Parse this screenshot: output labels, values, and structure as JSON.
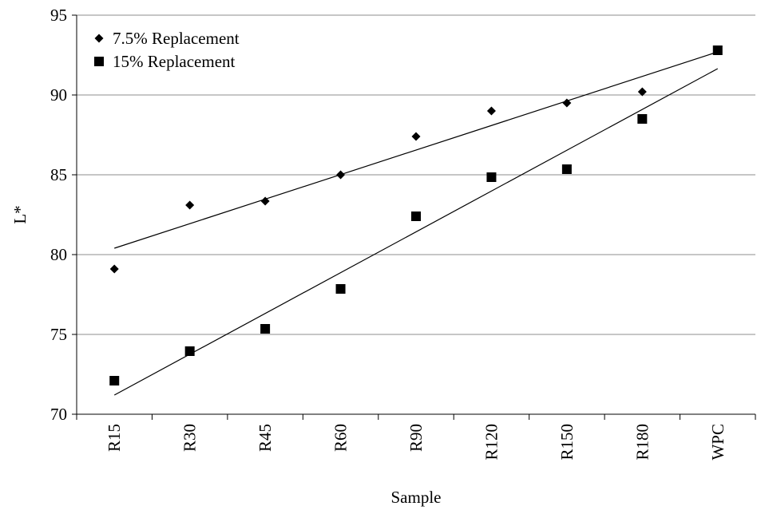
{
  "chart_data": {
    "type": "scatter",
    "categories": [
      "R15",
      "R30",
      "R45",
      "R60",
      "R90",
      "R120",
      "R150",
      "R180",
      "WPC"
    ],
    "series": [
      {
        "name": "7.5% Replacement",
        "marker": "diamond",
        "values": [
          79.1,
          83.1,
          83.35,
          85.0,
          87.4,
          89.0,
          89.5,
          90.2,
          92.8
        ]
      },
      {
        "name": "15% Replacement",
        "marker": "square",
        "values": [
          72.1,
          73.95,
          75.35,
          77.85,
          82.4,
          84.85,
          85.35,
          88.5,
          92.8
        ]
      }
    ],
    "trendlines": [
      {
        "series": "7.5% Replacement",
        "start": 80.4,
        "end": 92.7
      },
      {
        "series": "15% Replacement",
        "start": 71.2,
        "end": 91.65
      }
    ],
    "xlabel": "Sample",
    "ylabel": "L*",
    "ylim": [
      70,
      95
    ],
    "yticks": [
      "70",
      "75",
      "80",
      "85",
      "90",
      "95"
    ],
    "grid": "horizontal",
    "legend_position": "top-left",
    "colors": {
      "marker": "#000000",
      "gridline": "#8c8c8c",
      "axis": "#000000"
    }
  }
}
